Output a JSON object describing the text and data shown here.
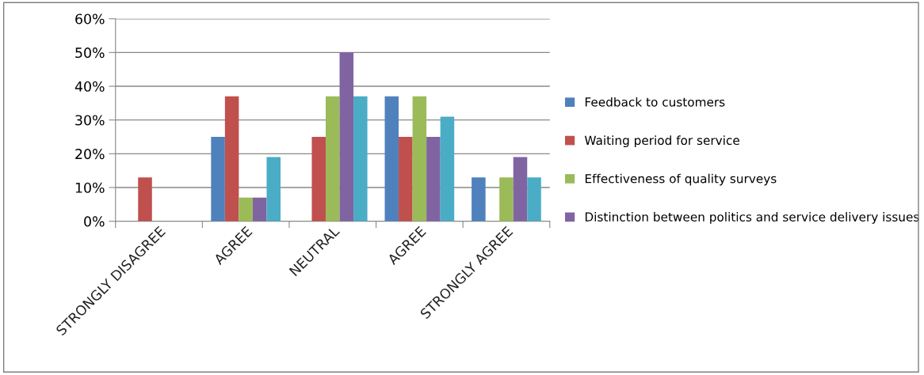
{
  "chart_data": {
    "type": "bar",
    "categories": [
      "STRONGLY DISAGREE",
      "AGREE",
      "NEUTRAL",
      "AGREE",
      "STRONGLY AGREE"
    ],
    "series": [
      {
        "name": "Feedback to customers",
        "color": "#4f81bd",
        "values": [
          0,
          25,
          0,
          37,
          13
        ]
      },
      {
        "name": "Waiting period for service",
        "color": "#c0504d",
        "values": [
          13,
          37,
          25,
          25,
          0
        ]
      },
      {
        "name": "Effectiveness of quality surveys",
        "color": "#9bbb59",
        "values": [
          0,
          7,
          37,
          37,
          13
        ]
      },
      {
        "name": "Distinction between politics and service delivery issues",
        "color": "#8064a2",
        "values": [
          0,
          7,
          50,
          25,
          19
        ]
      },
      {
        "color": "#4bacc6",
        "values": [
          0,
          19,
          37,
          31,
          13
        ]
      }
    ],
    "ylim": [
      0,
      60
    ],
    "yticks": [
      {
        "value": 0,
        "label": "0%"
      },
      {
        "value": 10,
        "label": "10%"
      },
      {
        "value": 20,
        "label": "20%"
      },
      {
        "value": 30,
        "label": "30%"
      },
      {
        "value": 40,
        "label": "40%"
      },
      {
        "value": 50,
        "label": "50%"
      },
      {
        "value": 60,
        "label": "60%"
      }
    ],
    "grid": "y",
    "legend": "right"
  }
}
